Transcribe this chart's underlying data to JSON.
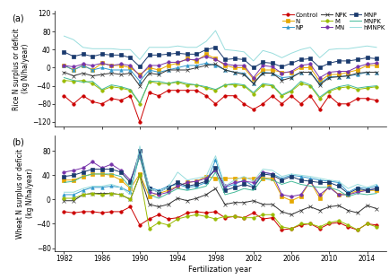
{
  "years": [
    1982,
    1983,
    1984,
    1985,
    1986,
    1987,
    1988,
    1989,
    1990,
    1991,
    1992,
    1993,
    1994,
    1995,
    1996,
    1997,
    1998,
    1999,
    2000,
    2001,
    2002,
    2003,
    2004,
    2005,
    2006,
    2007,
    2008,
    2009,
    2010,
    2011,
    2012,
    2013,
    2014,
    2015
  ],
  "rice": {
    "Control": [
      -62,
      -80,
      -62,
      -75,
      -80,
      -68,
      -72,
      -62,
      -120,
      -55,
      -62,
      -50,
      -50,
      -50,
      -50,
      -62,
      -80,
      -62,
      -62,
      -80,
      -92,
      -80,
      -62,
      -80,
      -62,
      -80,
      -62,
      -92,
      -62,
      -80,
      -80,
      -68,
      -68,
      -72
    ],
    "N": [
      5,
      -5,
      5,
      -5,
      10,
      5,
      5,
      0,
      -15,
      0,
      -5,
      5,
      10,
      20,
      15,
      30,
      20,
      5,
      0,
      0,
      -25,
      -5,
      -5,
      -10,
      -10,
      0,
      0,
      -30,
      -15,
      -15,
      -10,
      -5,
      5,
      5
    ],
    "NP": [
      5,
      -5,
      5,
      -5,
      0,
      -5,
      -5,
      -5,
      -30,
      -5,
      -10,
      -5,
      0,
      5,
      5,
      10,
      5,
      -5,
      -10,
      -12,
      -35,
      -10,
      -12,
      -22,
      -20,
      -10,
      -10,
      -35,
      -20,
      -20,
      -18,
      -15,
      -10,
      -10
    ],
    "NPK": [
      -10,
      -18,
      -12,
      -18,
      -15,
      -12,
      -15,
      -12,
      -40,
      -12,
      -15,
      -5,
      -5,
      -5,
      0,
      5,
      8,
      -5,
      -10,
      -15,
      -35,
      -12,
      -12,
      -28,
      -22,
      -10,
      -10,
      -38,
      -22,
      -20,
      -18,
      -12,
      -10,
      -10
    ],
    "M": [
      -28,
      -30,
      -28,
      -35,
      -50,
      -42,
      -45,
      -50,
      -80,
      -30,
      -35,
      -35,
      -32,
      -38,
      -38,
      -45,
      -50,
      -38,
      -38,
      -40,
      -58,
      -38,
      -40,
      -62,
      -52,
      -35,
      -40,
      -68,
      -52,
      -45,
      -42,
      -48,
      -45,
      -42
    ],
    "MN": [
      5,
      2,
      8,
      5,
      10,
      5,
      8,
      5,
      -18,
      5,
      5,
      12,
      12,
      18,
      18,
      25,
      18,
      8,
      5,
      5,
      -22,
      5,
      2,
      -12,
      -8,
      5,
      8,
      -22,
      -10,
      -8,
      -8,
      2,
      8,
      10
    ],
    "MNP": [
      35,
      25,
      30,
      25,
      30,
      28,
      28,
      22,
      2,
      28,
      28,
      30,
      32,
      30,
      30,
      40,
      45,
      18,
      20,
      18,
      0,
      12,
      10,
      2,
      10,
      18,
      20,
      0,
      10,
      15,
      15,
      18,
      22,
      20
    ],
    "MNPK": [
      -22,
      -28,
      -32,
      -30,
      -48,
      -38,
      -42,
      -48,
      -78,
      -30,
      -30,
      -35,
      -30,
      -35,
      -38,
      -42,
      -48,
      -38,
      -35,
      -38,
      -55,
      -35,
      -38,
      -60,
      -50,
      -30,
      -38,
      -65,
      -50,
      -42,
      -38,
      -45,
      -42,
      -40
    ],
    "hMNPK": [
      70,
      62,
      45,
      42,
      42,
      42,
      40,
      40,
      18,
      45,
      45,
      45,
      48,
      45,
      45,
      58,
      82,
      40,
      38,
      35,
      15,
      38,
      32,
      22,
      32,
      40,
      45,
      22,
      40,
      42,
      42,
      45,
      48,
      45
    ]
  },
  "wheat": {
    "Control": [
      -20,
      -22,
      -20,
      -20,
      -22,
      -20,
      -20,
      -12,
      -42,
      -32,
      -25,
      -32,
      -30,
      -22,
      -20,
      -22,
      -20,
      -30,
      -28,
      -30,
      -22,
      -32,
      -30,
      -50,
      -48,
      -42,
      -40,
      -48,
      -40,
      -38,
      -45,
      -50,
      -40,
      -42
    ],
    "N": [
      32,
      32,
      38,
      42,
      42,
      40,
      32,
      18,
      42,
      5,
      10,
      15,
      22,
      28,
      30,
      38,
      35,
      35,
      35,
      35,
      35,
      35,
      35,
      5,
      -2,
      5,
      30,
      2,
      22,
      8,
      8,
      15,
      15,
      15
    ],
    "NP": [
      8,
      8,
      15,
      20,
      20,
      22,
      20,
      12,
      75,
      20,
      15,
      22,
      25,
      20,
      22,
      28,
      65,
      20,
      25,
      32,
      22,
      45,
      42,
      35,
      40,
      38,
      35,
      32,
      30,
      28,
      12,
      20,
      18,
      22
    ],
    "NPK": [
      -2,
      -2,
      8,
      10,
      10,
      10,
      8,
      0,
      40,
      -8,
      -12,
      -8,
      2,
      -2,
      2,
      8,
      18,
      -8,
      -5,
      -5,
      -2,
      -8,
      -8,
      -20,
      -25,
      -18,
      -12,
      -18,
      -12,
      -10,
      -18,
      -22,
      -10,
      -15
    ],
    "M": [
      2,
      2,
      8,
      10,
      8,
      10,
      8,
      0,
      40,
      -48,
      -38,
      -42,
      -32,
      -28,
      -25,
      -28,
      -32,
      -28,
      -28,
      -30,
      -30,
      -25,
      -25,
      -45,
      -48,
      -40,
      -40,
      -45,
      -38,
      -35,
      -42,
      -50,
      -40,
      -45
    ],
    "MN": [
      45,
      48,
      52,
      62,
      52,
      58,
      48,
      32,
      70,
      12,
      8,
      12,
      22,
      28,
      30,
      35,
      48,
      22,
      28,
      30,
      28,
      45,
      42,
      8,
      5,
      8,
      30,
      8,
      20,
      8,
      8,
      12,
      15,
      18
    ],
    "MNP": [
      38,
      40,
      45,
      50,
      50,
      50,
      45,
      28,
      80,
      18,
      12,
      20,
      28,
      22,
      25,
      30,
      52,
      15,
      20,
      25,
      20,
      42,
      40,
      32,
      38,
      32,
      30,
      28,
      28,
      22,
      10,
      18,
      15,
      18
    ],
    "MNPK": [
      28,
      30,
      38,
      42,
      42,
      42,
      38,
      20,
      72,
      8,
      2,
      10,
      18,
      15,
      18,
      22,
      45,
      8,
      12,
      18,
      15,
      35,
      32,
      25,
      30,
      25,
      22,
      20,
      20,
      15,
      5,
      10,
      8,
      10
    ],
    "hMNPK": [
      12,
      12,
      18,
      22,
      22,
      25,
      20,
      8,
      88,
      18,
      12,
      20,
      45,
      32,
      35,
      38,
      72,
      22,
      32,
      38,
      30,
      50,
      48,
      38,
      42,
      40,
      38,
      35,
      32,
      30,
      18,
      25,
      20,
      25
    ]
  },
  "colors": {
    "Control": "#cc0000",
    "N": "#e5a800",
    "NP": "#3399cc",
    "NPK": "#333333",
    "M": "#99bb00",
    "MN": "#7733aa",
    "MNP": "#1a3a6e",
    "MNPK": "#44bb99",
    "hMNPK": "#99dddd"
  },
  "rice_ylim": [
    -130,
    125
  ],
  "wheat_ylim": [
    -85,
    105
  ],
  "rice_yticks": [
    -120,
    -80,
    -40,
    0,
    40,
    80,
    120
  ],
  "wheat_yticks": [
    -80,
    -40,
    0,
    40,
    80
  ],
  "xticks": [
    1982,
    1986,
    1990,
    1994,
    1998,
    2002,
    2006,
    2010,
    2014
  ],
  "xlabel": "Fertilization year",
  "rice_ylabel": "Rice N surplus or deficit\n(kg N/ha/year)",
  "wheat_ylabel": "Wheat N surplus or deficit\n(kg N/ha/year)",
  "panel_a": "(a)",
  "panel_b": "(b)",
  "legend_order": [
    "Control",
    "N",
    "NP",
    "NPK",
    "M",
    "MN",
    "MNP",
    "MNPK",
    "hMNPK"
  ]
}
